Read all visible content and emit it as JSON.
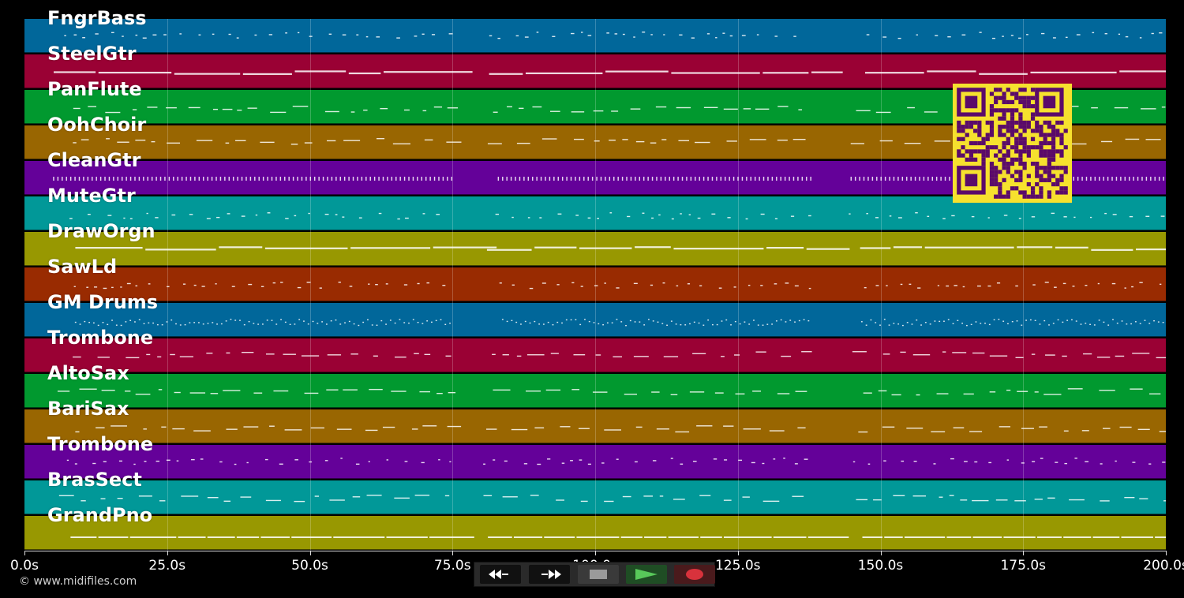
{
  "tracks": [
    {
      "name": "FngrBass",
      "color": "#01679a",
      "style": "dots"
    },
    {
      "name": "SteelGtr",
      "color": "#9a0134",
      "style": "bars"
    },
    {
      "name": "PanFlute",
      "color": "#01992f",
      "style": "dashes"
    },
    {
      "name": "OohChoir",
      "color": "#996601",
      "style": "dashes"
    },
    {
      "name": "CleanGtr",
      "color": "#640199",
      "style": "ticks"
    },
    {
      "name": "MuteGtr",
      "color": "#019898",
      "style": "dots"
    },
    {
      "name": "DrawOrgn",
      "color": "#989801",
      "style": "bars"
    },
    {
      "name": "SawLd",
      "color": "#992b01",
      "style": "dots"
    },
    {
      "name": "GM Drums",
      "color": "#01679a",
      "style": "dense"
    },
    {
      "name": "Trombone",
      "color": "#9a0134",
      "style": "dashes"
    },
    {
      "name": "AltoSax",
      "color": "#01992f",
      "style": "dashes"
    },
    {
      "name": "BariSax",
      "color": "#996601",
      "style": "dashes"
    },
    {
      "name": "Trombone",
      "color": "#640199",
      "style": "dots"
    },
    {
      "name": "BrasSect",
      "color": "#019898",
      "style": "dashes"
    },
    {
      "name": "GrandPno",
      "color": "#989801",
      "style": "line"
    }
  ],
  "timeline": {
    "min_seconds": 0,
    "max_seconds": 200,
    "ticks": [
      {
        "value": 0,
        "label": "0.0s"
      },
      {
        "value": 25,
        "label": "25.0s"
      },
      {
        "value": 50,
        "label": "50.0s"
      },
      {
        "value": 75,
        "label": "75.0s"
      },
      {
        "value": 100,
        "label": "100.0s"
      },
      {
        "value": 125,
        "label": "125.0s"
      },
      {
        "value": 150,
        "label": "150.0s"
      },
      {
        "value": 175,
        "label": "175.0s"
      },
      {
        "value": 200,
        "label": "200.0s"
      }
    ]
  },
  "copyright": "© www.midifiles.com",
  "transport": {
    "rewind_icon": "rewind-icon",
    "fast_forward_icon": "fast-forward-icon",
    "stop_icon": "stop-icon",
    "play_icon": "play-icon",
    "record_icon": "record-icon",
    "play_color": "#58c85a",
    "record_color": "#d8323c"
  },
  "qr_code": {
    "icon": "qr-code",
    "color": "#f6e12e",
    "ink": "#5a0a6a"
  }
}
